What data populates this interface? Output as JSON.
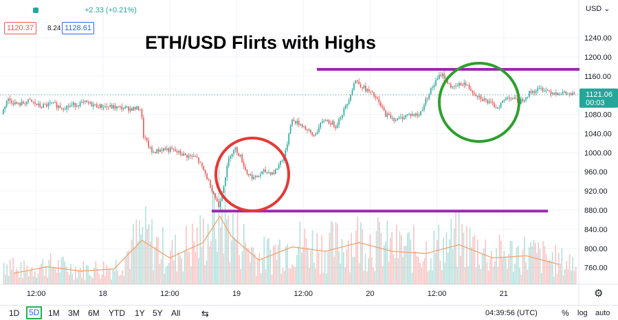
{
  "header": {
    "change_text": "+2.33 (+0.21%)",
    "bid": "1120.37",
    "spread": "8.24",
    "ask": "1128.61",
    "currency": "USD",
    "currency_caret": "⌄"
  },
  "annotation": {
    "title": "ETH/USD Flirts with Highs",
    "resistance_color": "#9c27b0",
    "support_color": "#9c27b0",
    "red_circle_color": "#e53935",
    "green_circle_color": "#2ca02c"
  },
  "last_price": {
    "value": "1121.06",
    "countdown": "00:03",
    "color": "#26a69a"
  },
  "bottom": {
    "timeframes": [
      "1D",
      "5D",
      "1M",
      "3M",
      "6M",
      "YTD",
      "1Y",
      "5Y",
      "All"
    ],
    "active_timeframe": "5D",
    "clock": "04:39:56 (UTC)",
    "percent": "%",
    "log": "log",
    "auto": "auto"
  },
  "chart_data": {
    "type": "line",
    "symbol": "ETH/USD",
    "y_ticks": [
      760,
      800,
      840,
      880,
      920,
      960,
      1000,
      1040,
      1080,
      1120,
      1160,
      1200,
      1240
    ],
    "y_tick_labels": [
      "760.00",
      "800.00",
      "840.00",
      "880.00",
      "920.00",
      "960.00",
      "1000.00",
      "1040.00",
      "1080.00",
      "1120.00",
      "1160.00",
      "1200.00",
      "1240.00"
    ],
    "ylim": [
      735,
      1275
    ],
    "x_tick_labels": [
      "12:00",
      "18",
      "12:00",
      "19",
      "12:00",
      "20",
      "12:00",
      "21"
    ],
    "x_ticks_hours": [
      12,
      24,
      36,
      48,
      60,
      72,
      84,
      96
    ],
    "xlim_hours": [
      6,
      109
    ],
    "price_series": [
      {
        "t": 6.0,
        "v": 1080
      },
      {
        "t": 7.0,
        "v": 1112
      },
      {
        "t": 9.0,
        "v": 1100
      },
      {
        "t": 11.0,
        "v": 1108
      },
      {
        "t": 13.0,
        "v": 1096
      },
      {
        "t": 15.0,
        "v": 1102
      },
      {
        "t": 17.0,
        "v": 1094
      },
      {
        "t": 19.0,
        "v": 1100
      },
      {
        "t": 21.0,
        "v": 1104
      },
      {
        "t": 23.0,
        "v": 1098
      },
      {
        "t": 25.0,
        "v": 1096
      },
      {
        "t": 27.0,
        "v": 1094
      },
      {
        "t": 29.0,
        "v": 1092
      },
      {
        "t": 31.0,
        "v": 1092
      },
      {
        "t": 31.5,
        "v": 1035
      },
      {
        "t": 33.0,
        "v": 1000
      },
      {
        "t": 35.0,
        "v": 1008
      },
      {
        "t": 37.0,
        "v": 1004
      },
      {
        "t": 39.0,
        "v": 994
      },
      {
        "t": 41.0,
        "v": 990
      },
      {
        "t": 42.5,
        "v": 958
      },
      {
        "t": 44.0,
        "v": 918
      },
      {
        "t": 45.0,
        "v": 888
      },
      {
        "t": 46.0,
        "v": 940
      },
      {
        "t": 47.0,
        "v": 996
      },
      {
        "t": 48.0,
        "v": 1008
      },
      {
        "t": 49.0,
        "v": 990
      },
      {
        "t": 50.0,
        "v": 958
      },
      {
        "t": 51.5,
        "v": 946
      },
      {
        "t": 53.0,
        "v": 960
      },
      {
        "t": 55.0,
        "v": 958
      },
      {
        "t": 57.0,
        "v": 1000
      },
      {
        "t": 58.0,
        "v": 1068
      },
      {
        "t": 60.0,
        "v": 1058
      },
      {
        "t": 62.0,
        "v": 1034
      },
      {
        "t": 64.0,
        "v": 1070
      },
      {
        "t": 66.0,
        "v": 1056
      },
      {
        "t": 68.0,
        "v": 1100
      },
      {
        "t": 69.5,
        "v": 1152
      },
      {
        "t": 71.0,
        "v": 1136
      },
      {
        "t": 73.0,
        "v": 1118
      },
      {
        "t": 75.0,
        "v": 1080
      },
      {
        "t": 77.0,
        "v": 1068
      },
      {
        "t": 79.0,
        "v": 1080
      },
      {
        "t": 81.0,
        "v": 1078
      },
      {
        "t": 83.0,
        "v": 1130
      },
      {
        "t": 85.0,
        "v": 1166
      },
      {
        "t": 87.0,
        "v": 1134
      },
      {
        "t": 89.0,
        "v": 1146
      },
      {
        "t": 91.0,
        "v": 1124
      },
      {
        "t": 93.0,
        "v": 1108
      },
      {
        "t": 95.0,
        "v": 1094
      },
      {
        "t": 97.0,
        "v": 1118
      },
      {
        "t": 99.0,
        "v": 1106
      },
      {
        "t": 101.0,
        "v": 1126
      },
      {
        "t": 103.0,
        "v": 1134
      },
      {
        "t": 105.0,
        "v": 1126
      },
      {
        "t": 107.0,
        "v": 1124
      },
      {
        "t": 108.5,
        "v": 1121
      }
    ],
    "volume_series": [
      {
        "t": 8,
        "v": 10
      },
      {
        "t": 14,
        "v": 16
      },
      {
        "t": 20,
        "v": 12
      },
      {
        "t": 26,
        "v": 14
      },
      {
        "t": 31,
        "v": 40
      },
      {
        "t": 36,
        "v": 24
      },
      {
        "t": 42,
        "v": 38
      },
      {
        "t": 45,
        "v": 62
      },
      {
        "t": 47,
        "v": 44
      },
      {
        "t": 52,
        "v": 22
      },
      {
        "t": 58,
        "v": 34
      },
      {
        "t": 64,
        "v": 30
      },
      {
        "t": 70,
        "v": 38
      },
      {
        "t": 76,
        "v": 30
      },
      {
        "t": 82,
        "v": 28
      },
      {
        "t": 88,
        "v": 36
      },
      {
        "t": 94,
        "v": 24
      },
      {
        "t": 100,
        "v": 26
      },
      {
        "t": 106,
        "v": 18
      }
    ],
    "resistance_level": 1174,
    "support_level": 878,
    "last_price_level": 1121.06
  }
}
